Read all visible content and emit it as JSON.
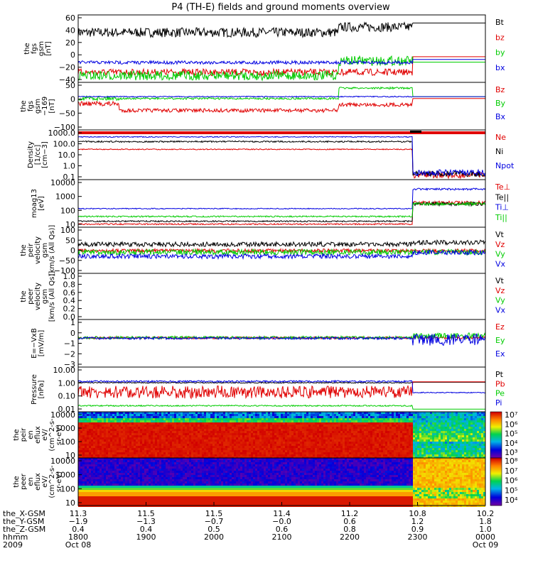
{
  "title": "P4 (TH-E) fields and ground moments overview",
  "colors": {
    "black": "#000000",
    "red": "#e00000",
    "green": "#00cc00",
    "blue": "#0000e0"
  },
  "chart_data": [
    {
      "type": "line",
      "ylabel": [
        "the",
        "fgs",
        "gsm",
        "[nT]"
      ],
      "yticks": [
        "60",
        "40",
        "20",
        "0",
        "−20",
        "−40"
      ],
      "ylim": [
        -40,
        60
      ],
      "legend": [
        {
          "label": "Bt",
          "color": "black"
        },
        {
          "label": "bz",
          "color": "red"
        },
        {
          "label": "by",
          "color": "green"
        },
        {
          "label": "bx",
          "color": "blue"
        }
      ]
    },
    {
      "type": "line",
      "ylabel": [
        "the",
        "fgs",
        "gsm",
        "−169",
        "[nT]"
      ],
      "yticks": [
        "50",
        "0",
        "−50",
        "−100"
      ],
      "ylim": [
        -120,
        50
      ],
      "legend": [
        {
          "label": "Bz",
          "color": "red"
        },
        {
          "label": "By",
          "color": "green"
        },
        {
          "label": "Bx",
          "color": "blue"
        }
      ]
    },
    {
      "type": "line",
      "ylabel": [
        "Density",
        "[1/cc]",
        "[cm−3]"
      ],
      "yticks": [
        "1000.0",
        "100.0",
        "10.0",
        "1.0",
        "0.1"
      ],
      "ylim": [
        0.1,
        1000
      ],
      "yscale": "log",
      "legend": [
        {
          "label": "Ne",
          "color": "red"
        },
        {
          "label": "Ni",
          "color": "black"
        },
        {
          "label": "Npot",
          "color": "blue"
        }
      ]
    },
    {
      "type": "line",
      "ylabel": [
        "moag13",
        "[eV]"
      ],
      "yticks": [
        "10000",
        "1000",
        "100",
        "10"
      ],
      "ylim": [
        10,
        10000
      ],
      "yscale": "log",
      "legend": [
        {
          "label": "Te⊥",
          "color": "red"
        },
        {
          "label": "Te||",
          "color": "black"
        },
        {
          "label": "Ti⊥",
          "color": "blue"
        },
        {
          "label": "Ti||",
          "color": "green"
        }
      ]
    },
    {
      "type": "line",
      "ylabel": [
        "the",
        "peir",
        "velocity",
        "gsm",
        "[km/s (All Qs)]"
      ],
      "yticks": [
        "100",
        "50",
        "0",
        "−50",
        "−100"
      ],
      "ylim": [
        -100,
        100
      ],
      "legend": [
        {
          "label": "Vt",
          "color": "black"
        },
        {
          "label": "Vz",
          "color": "red"
        },
        {
          "label": "Vy",
          "color": "green"
        },
        {
          "label": "Vx",
          "color": "blue"
        }
      ]
    },
    {
      "type": "line",
      "ylabel": [
        "the",
        "peer",
        "velocity",
        "gsm",
        "[km/s (All Qs)]"
      ],
      "yticks": [
        "1.0",
        "0.8",
        "0.6",
        "0.4",
        "0.2",
        "0.0"
      ],
      "ylim": [
        0,
        1
      ],
      "legend": [
        {
          "label": "Vt",
          "color": "black"
        },
        {
          "label": "Vz",
          "color": "red"
        },
        {
          "label": "Vy",
          "color": "green"
        },
        {
          "label": "Vx",
          "color": "blue"
        }
      ]
    },
    {
      "type": "line",
      "ylabel": [
        "E=−VxB",
        "[mV/m]"
      ],
      "yticks": [
        "1",
        "0",
        "−1",
        "−2",
        "−3"
      ],
      "ylim": [
        -3,
        1.5
      ],
      "legend": [
        {
          "label": "Ez",
          "color": "red"
        },
        {
          "label": "Ey",
          "color": "green"
        },
        {
          "label": "Ex",
          "color": "blue"
        }
      ]
    },
    {
      "type": "line",
      "ylabel": [
        "Pressure",
        "[nPa]"
      ],
      "yticks": [
        "10.00",
        "1.00",
        "0.10",
        "0.01"
      ],
      "ylim": [
        0.01,
        10
      ],
      "yscale": "log",
      "legend": [
        {
          "label": "Pt",
          "color": "black"
        },
        {
          "label": "Pb",
          "color": "red"
        },
        {
          "label": "Pe",
          "color": "green"
        },
        {
          "label": "Pi",
          "color": "blue"
        }
      ]
    },
    {
      "type": "heatmap",
      "ylabel": [
        "the",
        "peir",
        "en",
        "eflux",
        "eV/",
        "(cm^2-s-",
        "sr-eV)"
      ],
      "yticks": [
        "10000",
        "1000",
        "100",
        "10"
      ],
      "ylim": [
        10,
        10000
      ],
      "yscale": "log",
      "colorbar": [
        "10⁷",
        "10⁶",
        "10⁵",
        "10⁴",
        "10³"
      ]
    },
    {
      "type": "heatmap",
      "ylabel": [
        "the",
        "peer",
        "en",
        "eflux",
        "eV/",
        "(cm^2-s-",
        "sr-eV)"
      ],
      "yticks": [
        "10000",
        "1000",
        "100",
        "10"
      ],
      "ylim": [
        10,
        10000
      ],
      "yscale": "log",
      "colorbar": [
        "10⁸",
        "10⁷",
        "10⁶",
        "10⁵",
        "10⁴"
      ]
    }
  ],
  "x_axis": {
    "rows": [
      {
        "label": "the_X-GSM",
        "values": [
          "11.3",
          "11.5",
          "11.5",
          "11.4",
          "11.2",
          "10.8",
          "10.2"
        ]
      },
      {
        "label": "the_Y-GSM",
        "values": [
          "−1.9",
          "−1.3",
          "−0.7",
          "−0.0",
          "0.6",
          "1.2",
          "1.8"
        ]
      },
      {
        "label": "the_Z-GSM",
        "values": [
          "0.4",
          "0.4",
          "0.5",
          "0.6",
          "0.8",
          "0.9",
          "1.0"
        ]
      },
      {
        "label": "hhmm",
        "values": [
          "1800",
          "1900",
          "2000",
          "2100",
          "2200",
          "2300",
          "0000"
        ]
      },
      {
        "label": "2009",
        "values": [
          "Oct 08",
          "",
          "",
          "",
          "",
          "",
          "Oct 09"
        ]
      }
    ]
  }
}
